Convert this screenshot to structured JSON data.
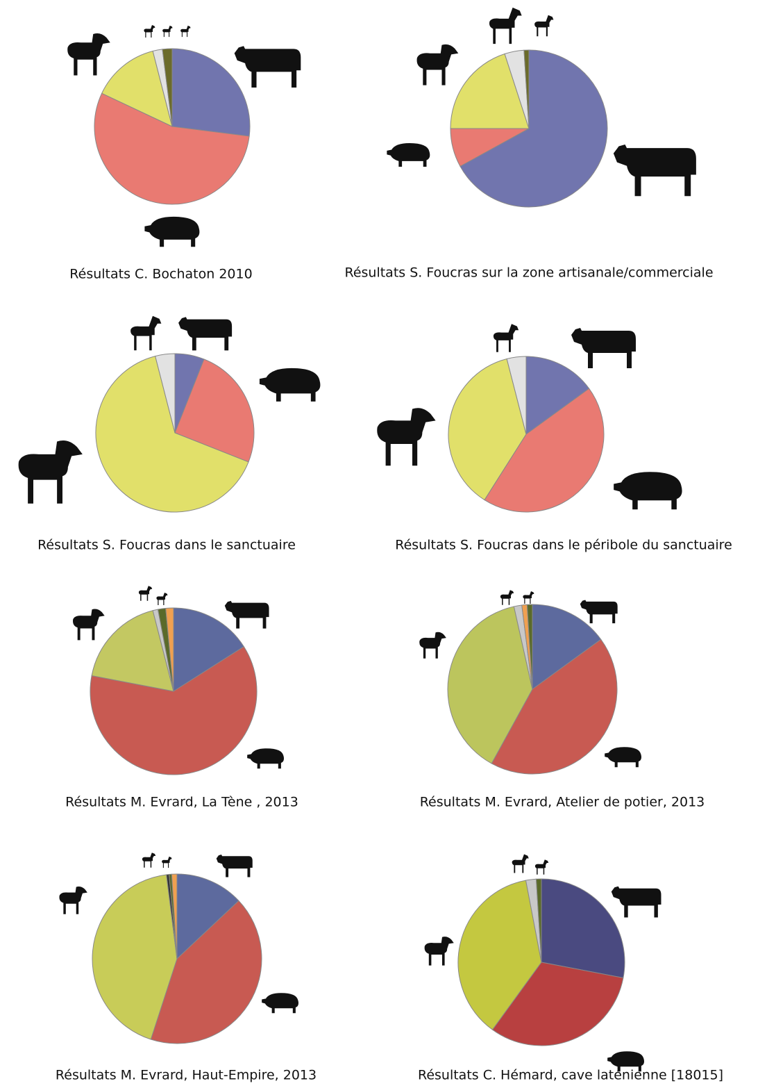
{
  "chart_data": [
    {
      "type": "pie",
      "title": "Résultats C. Bochaton 2010",
      "values": [
        27,
        55,
        14,
        2,
        2
      ],
      "colors": [
        "#7175ae",
        "#e97a72",
        "#e1e06a",
        "#e2e2e2",
        "#6b6b2a"
      ]
    },
    {
      "type": "pie",
      "title": "Résultats S. Foucras  sur la zone artisanale/commerciale",
      "values": [
        67,
        8,
        20,
        4,
        1
      ],
      "colors": [
        "#7175ae",
        "#e97a72",
        "#e1e06a",
        "#e2e2e2",
        "#6b6b2a"
      ]
    },
    {
      "type": "pie",
      "title": "Résultats  S. Foucras  dans le sanctuaire",
      "values": [
        6,
        25,
        65,
        4
      ],
      "colors": [
        "#7175ae",
        "#e97a72",
        "#e1e06a",
        "#e2e2e2"
      ]
    },
    {
      "type": "pie",
      "title": "Résultats  S. Foucras  dans le  péribole du sanctuaire",
      "values": [
        15,
        44,
        37,
        4
      ],
      "colors": [
        "#7175ae",
        "#e97a72",
        "#e1e06a",
        "#e2e2e2"
      ]
    },
    {
      "type": "pie",
      "title": "Résultats  M. Evrard, La Tène , 2013",
      "values": [
        16,
        62,
        18,
        1,
        1.5,
        1.5
      ],
      "colors": [
        "#5d6a9e",
        "#c85a52",
        "#c3c862",
        "#c8c8c8",
        "#5a6a2a",
        "#f0a050"
      ]
    },
    {
      "type": "pie",
      "title": "Résultats  M. Evrard, Atelier de potier, 2013",
      "values": [
        15,
        43,
        38.5,
        1.5,
        1,
        1
      ],
      "colors": [
        "#5d6a9e",
        "#c85a52",
        "#bcc55d",
        "#c8c8c8",
        "#f0a050",
        "#5a6a2a"
      ]
    },
    {
      "type": "pie",
      "title": "Résultats  M. Evrard, Haut-Empire, 2013",
      "values": [
        13,
        42,
        43,
        0.5,
        0.5,
        1
      ],
      "colors": [
        "#5d6a9e",
        "#c85a52",
        "#c8cc58",
        "#333333",
        "#5a6a2a",
        "#f0a050"
      ]
    },
    {
      "type": "pie",
      "title": "Résultats  C. Hémard, cave laténienne [18015]",
      "values": [
        28,
        32,
        37,
        2,
        1
      ],
      "colors": [
        "#4a4a80",
        "#b84040",
        "#c4c840",
        "#c8c8c8",
        "#5a6a2a"
      ]
    }
  ]
}
